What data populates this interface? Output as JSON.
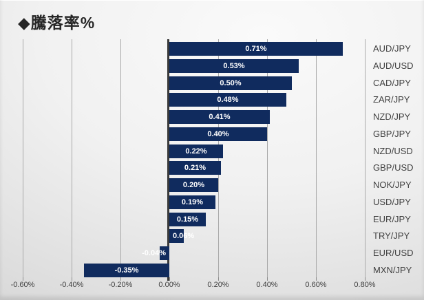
{
  "title": "◆騰落率%",
  "chart_data": {
    "type": "bar",
    "orientation": "horizontal",
    "title": "◆騰落率%",
    "categories": [
      "AUD/JPY",
      "AUD/USD",
      "CAD/JPY",
      "ZAR/JPY",
      "NZD/JPY",
      "GBP/JPY",
      "NZD/USD",
      "GBP/USD",
      "NOK/JPY",
      "USD/JPY",
      "EUR/JPY",
      "TRY/JPY",
      "EUR/USD",
      "MXN/JPY"
    ],
    "values": [
      0.71,
      0.53,
      0.5,
      0.48,
      0.41,
      0.4,
      0.22,
      0.21,
      0.2,
      0.19,
      0.15,
      0.06,
      -0.04,
      -0.35
    ],
    "value_labels": [
      "0.71%",
      "0.53%",
      "0.50%",
      "0.48%",
      "0.41%",
      "0.40%",
      "0.22%",
      "0.21%",
      "0.20%",
      "0.19%",
      "0.15%",
      "0.06%",
      "-0.04%",
      "-0.35%"
    ],
    "x_axis": {
      "tick_values": [
        -0.6,
        -0.4,
        -0.2,
        0.0,
        0.2,
        0.4,
        0.6,
        0.8
      ],
      "tick_labels": [
        "-0.60%",
        "-0.40%",
        "-0.20%",
        "0.00%",
        "0.20%",
        "0.40%",
        "0.60%",
        "0.80%"
      ],
      "unit": "%"
    },
    "xlim": [
      -0.7,
      0.85
    ],
    "grid": true,
    "legend": "none",
    "colors": {
      "bar": "#102B5E",
      "value_label": "#FFFFFF",
      "gridline": "#A8A8A8",
      "tick": "#8C8C8C",
      "zero_axis": "#3A3A3A",
      "axis_text": "#404040",
      "category_text": "#3F3F3F",
      "title_text": "#262626",
      "background_light": "#FAFAFA",
      "background_dark": "#CECECE"
    }
  }
}
